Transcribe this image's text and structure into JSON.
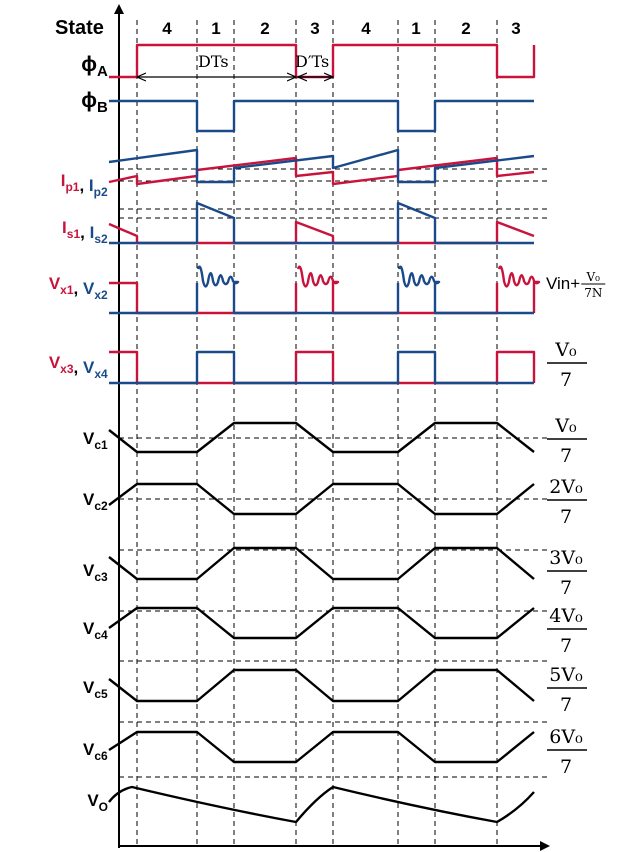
{
  "header": {
    "state_label": "State",
    "states": [
      "4",
      "1",
      "2",
      "3",
      "4",
      "1",
      "2",
      "3"
    ]
  },
  "annotations": {
    "dts": "DTs",
    "d_prime_ts": "D′Ts"
  },
  "rows": [
    {
      "key": "phiA",
      "parts": [
        {
          "t": "ϕ",
          "sub": "A",
          "c": "black"
        }
      ]
    },
    {
      "key": "phiB",
      "parts": [
        {
          "t": "ϕ",
          "sub": "B",
          "c": "black"
        }
      ]
    },
    {
      "key": "ip",
      "parts": [
        {
          "t": "I",
          "sub": "p1",
          "c": "red"
        },
        {
          "t": ", ",
          "c": "black"
        },
        {
          "t": "I",
          "sub": "p2",
          "c": "blue"
        }
      ]
    },
    {
      "key": "is",
      "parts": [
        {
          "t": "I",
          "sub": "s1",
          "c": "red"
        },
        {
          "t": ", ",
          "c": "black"
        },
        {
          "t": "I",
          "sub": "s2",
          "c": "blue"
        }
      ]
    },
    {
      "key": "vx12",
      "parts": [
        {
          "t": "V",
          "sub": "x1",
          "c": "red"
        },
        {
          "t": ", ",
          "c": "black"
        },
        {
          "t": "V",
          "sub": "x2",
          "c": "blue"
        }
      ]
    },
    {
      "key": "vx34",
      "parts": [
        {
          "t": "V",
          "sub": "x3",
          "c": "red"
        },
        {
          "t": ", ",
          "c": "black"
        },
        {
          "t": "V",
          "sub": "x4",
          "c": "blue"
        }
      ]
    },
    {
      "key": "vc1",
      "parts": [
        {
          "t": "V",
          "sub": "c1",
          "c": "black"
        }
      ]
    },
    {
      "key": "vc2",
      "parts": [
        {
          "t": "V",
          "sub": "c2",
          "c": "black"
        }
      ]
    },
    {
      "key": "vc3",
      "parts": [
        {
          "t": "V",
          "sub": "c3",
          "c": "black"
        }
      ]
    },
    {
      "key": "vc4",
      "parts": [
        {
          "t": "V",
          "sub": "c4",
          "c": "black"
        }
      ]
    },
    {
      "key": "vc5",
      "parts": [
        {
          "t": "V",
          "sub": "c5",
          "c": "black"
        }
      ]
    },
    {
      "key": "vc6",
      "parts": [
        {
          "t": "V",
          "sub": "c6",
          "c": "black"
        }
      ]
    },
    {
      "key": "vo",
      "parts": [
        {
          "t": "V",
          "sub": "O",
          "c": "black"
        }
      ]
    }
  ],
  "right_labels": {
    "vx12": {
      "prefix": "Vin+",
      "num": "V₀",
      "den": "7N"
    },
    "vx34": {
      "num": "V₀",
      "den": "7"
    },
    "vc1": {
      "num": "V₀",
      "den": "7"
    },
    "vc2": {
      "num": "2V₀",
      "den": "7"
    },
    "vc3": {
      "num": "3V₀",
      "den": "7"
    },
    "vc4": {
      "num": "4V₀",
      "den": "7"
    },
    "vc5": {
      "num": "5V₀",
      "den": "7"
    },
    "vc6": {
      "num": "6V₀",
      "den": "7"
    }
  },
  "colors": {
    "phase1": "#c8143c",
    "phase2": "#1a4a8a",
    "axis": "#000000"
  }
}
